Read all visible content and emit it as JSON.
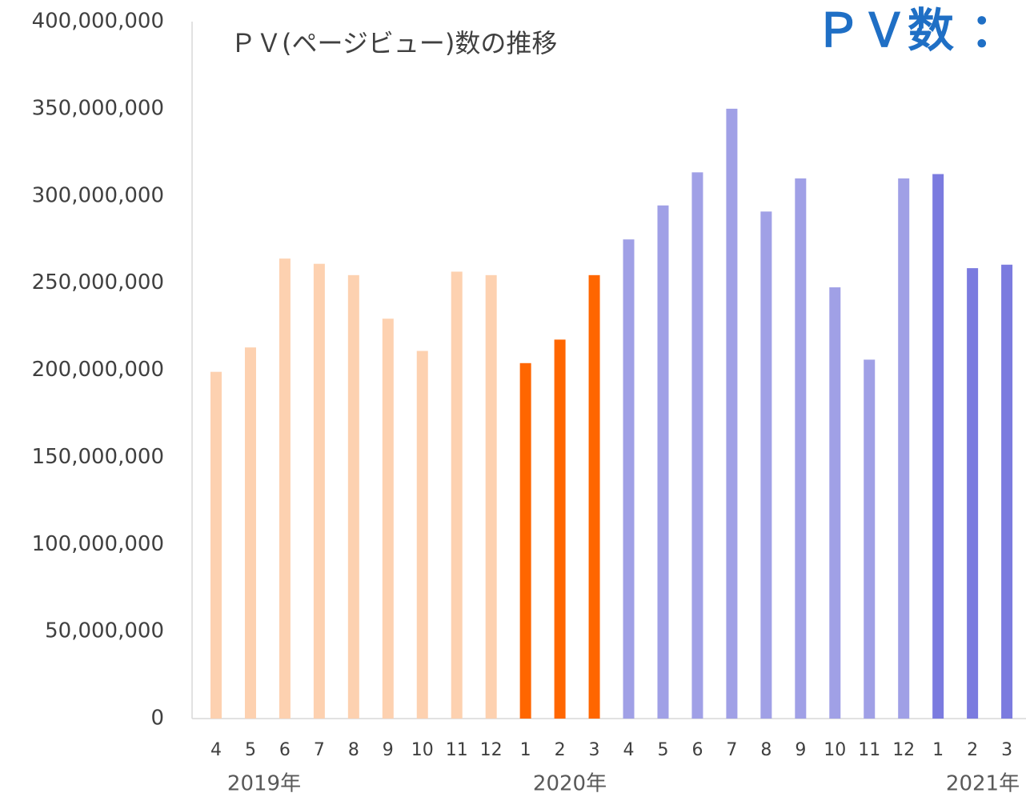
{
  "chart_data": {
    "type": "bar",
    "title": "ＰＶ(ページビュー)数の推移",
    "heading": "ＰＶ数 ：",
    "categories": [
      "4",
      "5",
      "6",
      "7",
      "8",
      "9",
      "10",
      "11",
      "12",
      "1",
      "2",
      "3",
      "4",
      "5",
      "6",
      "7",
      "8",
      "9",
      "10",
      "11",
      "12",
      "1",
      "2",
      "3"
    ],
    "year_labels": [
      "2019年",
      "2020年",
      "2021年"
    ],
    "values": [
      199000000,
      213000000,
      264000000,
      261000000,
      254500000,
      229500000,
      211000000,
      256500000,
      254500000,
      204000000,
      217500000,
      254500000,
      275000000,
      294500000,
      313500000,
      350000000,
      291000000,
      310000000,
      247500000,
      206000000,
      310000000,
      312500000,
      258500000,
      260500000
    ],
    "colors": [
      "#fdd1b0",
      "#fdd1b0",
      "#fdd1b0",
      "#fdd1b0",
      "#fdd1b0",
      "#fdd1b0",
      "#fdd1b0",
      "#fdd1b0",
      "#fdd1b0",
      "#ff6600",
      "#ff6600",
      "#ff6600",
      "#a0a0e6",
      "#a0a0e6",
      "#a0a0e6",
      "#a0a0e6",
      "#a0a0e6",
      "#a0a0e6",
      "#a0a0e6",
      "#a0a0e6",
      "#a0a0e6",
      "#7b7bdf",
      "#7b7bdf",
      "#7b7bdf"
    ],
    "ylim": [
      0,
      400000000
    ],
    "yticks": [
      {
        "value": 0,
        "label": "0"
      },
      {
        "value": 50000000,
        "label": "50,000,000"
      },
      {
        "value": 100000000,
        "label": "100,000,000"
      },
      {
        "value": 150000000,
        "label": "150,000,000"
      },
      {
        "value": 200000000,
        "label": "200,000,000"
      },
      {
        "value": 250000000,
        "label": "250,000,000"
      },
      {
        "value": 300000000,
        "label": "300,000,000"
      },
      {
        "value": 350000000,
        "label": "350,000,000"
      },
      {
        "value": 400000000,
        "label": "400,000,000"
      }
    ],
    "grid": false
  }
}
